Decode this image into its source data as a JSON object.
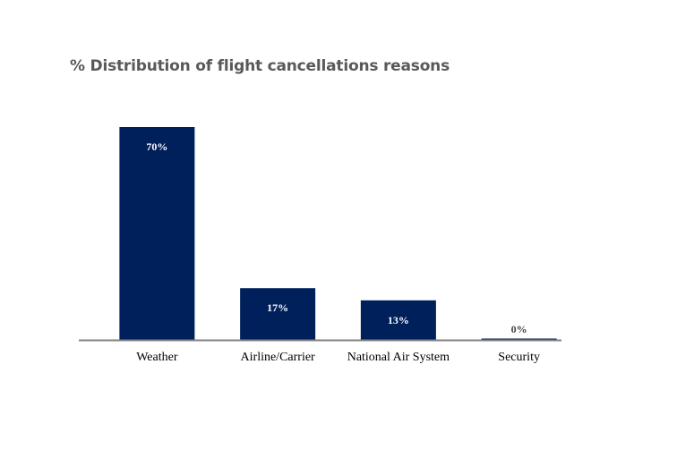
{
  "chart_data": {
    "type": "bar",
    "title": "% Distribution of flight cancellations reasons",
    "categories": [
      "Weather",
      "Airline/Carrier",
      "National Air System",
      "Security"
    ],
    "values": [
      70,
      17,
      13,
      0
    ],
    "data_labels": [
      "70%",
      "17%",
      "13%",
      "0%"
    ],
    "xlabel": "",
    "ylabel": "",
    "ylim": [
      0,
      70
    ],
    "grid": false,
    "legend": "none",
    "colors": {
      "bar": "#00205B",
      "label_inside": "#FFFFFF",
      "label_outside": "#404040",
      "axis": "#808080"
    }
  }
}
